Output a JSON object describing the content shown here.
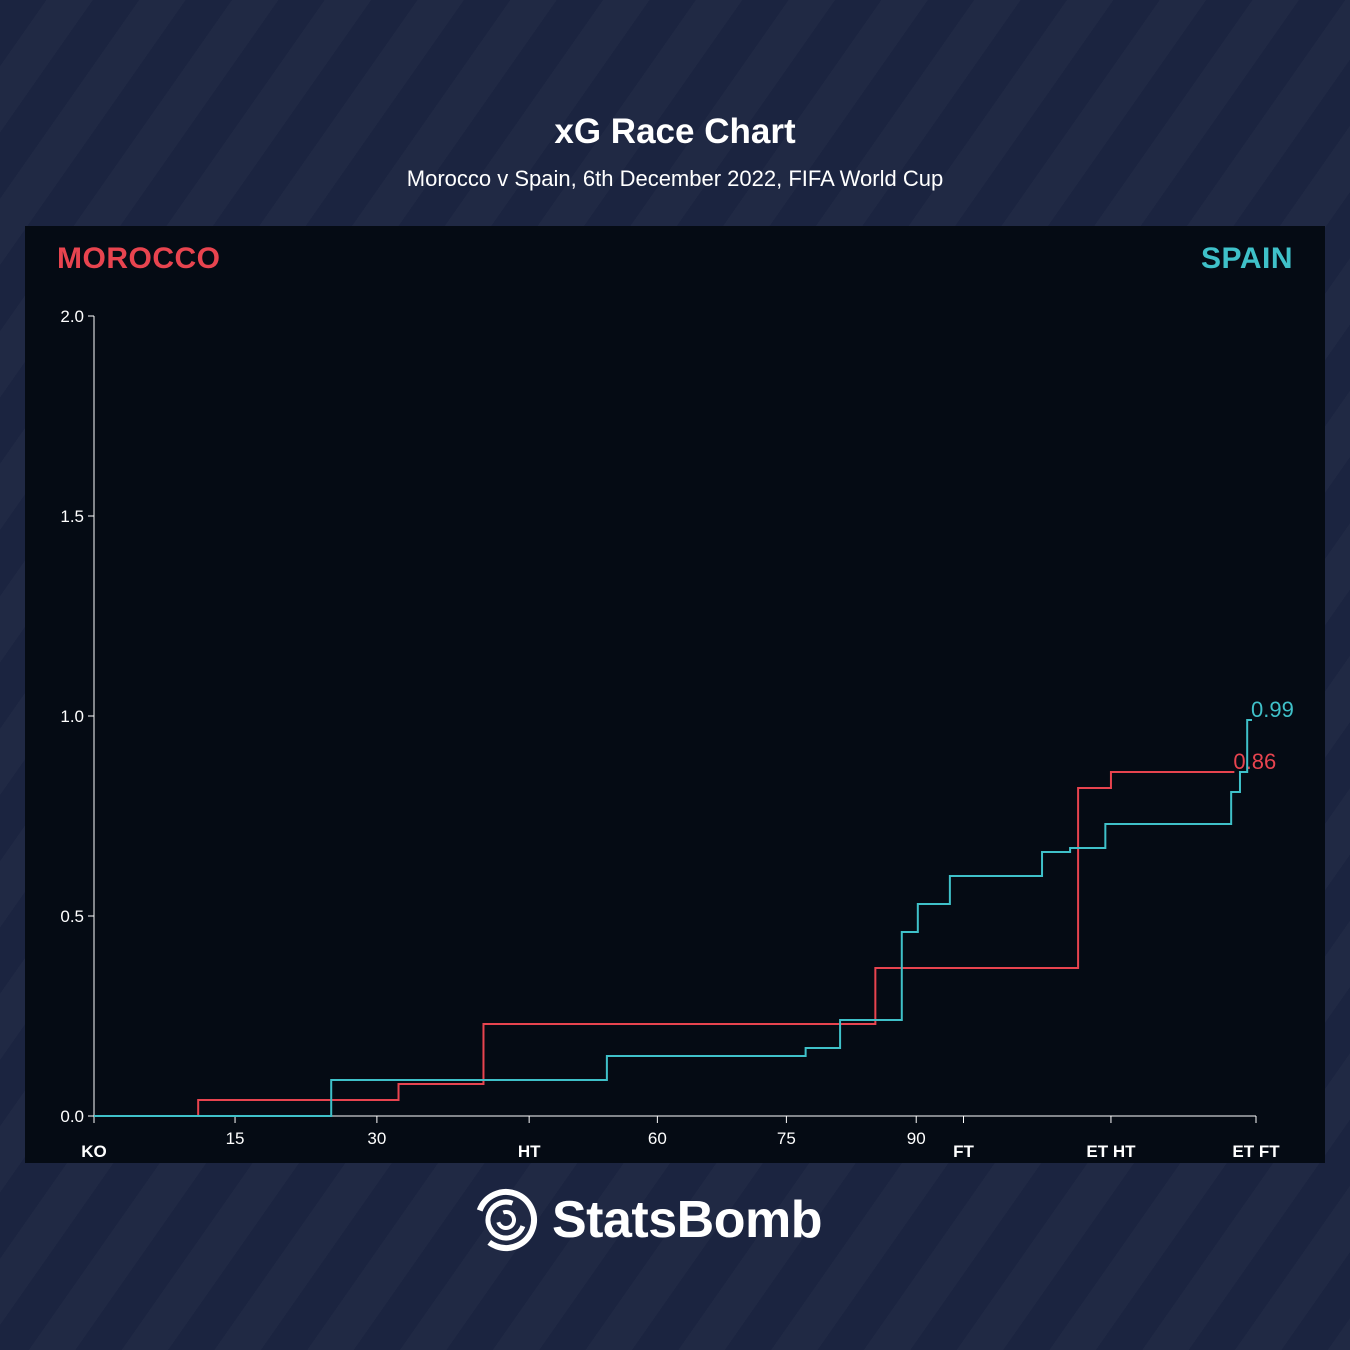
{
  "header": {
    "title": "xG Race Chart",
    "subtitle": "Morocco v Spain, 6th December 2022, FIFA World Cup"
  },
  "teams": {
    "left": {
      "name": "MOROCCO",
      "color": "#e8444f"
    },
    "right": {
      "name": "SPAIN",
      "color": "#3fc1c9"
    }
  },
  "branding": {
    "name": "StatsBomb"
  },
  "chart_data": {
    "type": "line",
    "step": "after",
    "ylim": [
      0,
      2
    ],
    "y_ticks": [
      {
        "value": 0,
        "label": "0.0"
      },
      {
        "value": 0.5,
        "label": "0.5"
      },
      {
        "value": 1,
        "label": "1.0"
      },
      {
        "value": 1.5,
        "label": "1.5"
      },
      {
        "value": 2,
        "label": "2.0"
      }
    ],
    "x_range": [
      0,
      145
    ],
    "x_ticks": [
      {
        "value": 17.6,
        "label": "15"
      },
      {
        "value": 35.3,
        "label": "30"
      },
      {
        "value": 70.3,
        "label": "60"
      },
      {
        "value": 86.4,
        "label": "75"
      },
      {
        "value": 102.6,
        "label": "90"
      }
    ],
    "period_markers": [
      {
        "value": 0,
        "label": "KO"
      },
      {
        "value": 54.3,
        "label": "HT"
      },
      {
        "value": 108.5,
        "label": "FT"
      },
      {
        "value": 126.9,
        "label": "ET HT"
      },
      {
        "value": 145,
        "label": "ET FT"
      }
    ],
    "series": [
      {
        "name": "MOROCCO",
        "color": "#e8444f",
        "final_label": "0.86",
        "x": [
          0,
          13,
          38,
          48.6,
          97.5,
          122.8,
          126.9,
          142.3
        ],
        "y": [
          0,
          0.04,
          0.08,
          0.23,
          0.37,
          0.82,
          0.86,
          0.86
        ]
      },
      {
        "name": "SPAIN",
        "color": "#3fc1c9",
        "x": [
          0,
          29.6,
          64,
          88.8,
          93.1,
          100.8,
          102.8,
          106.8,
          118.3,
          121.8,
          126.2,
          141.9,
          143,
          143.9,
          144.5
        ],
        "y": [
          0,
          0.09,
          0.15,
          0.17,
          0.24,
          0.46,
          0.53,
          0.6,
          0.66,
          0.67,
          0.73,
          0.81,
          0.86,
          0.99,
          0.99
        ],
        "final_label": "0.99"
      }
    ]
  }
}
